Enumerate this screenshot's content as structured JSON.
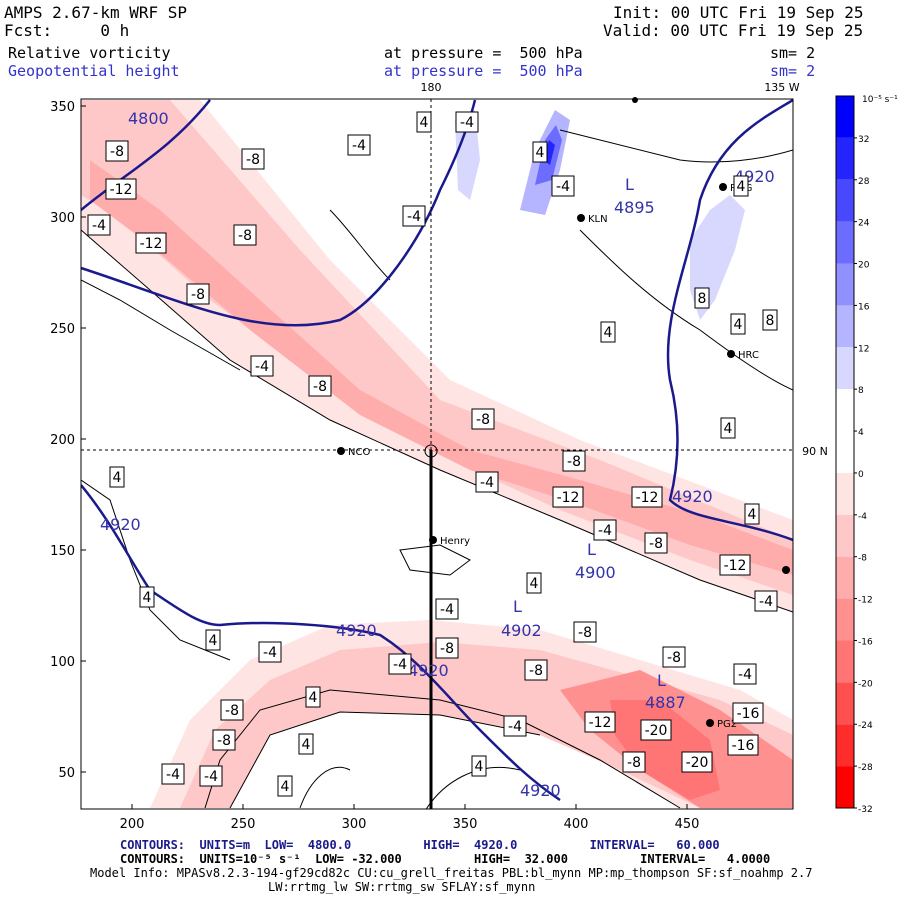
{
  "header": {
    "model": "AMPS 2.67-km WRF SP",
    "fcst": "Fcst:     0 h",
    "init": "Init: 00 UTC Fri 19 Sep 25",
    "valid": "Valid: 00 UTC Fri 19 Sep 25",
    "field1": "Relative vorticity",
    "field2": "Geopotential height",
    "level1": "at pressure =  500 hPa",
    "level2": "at pressure =  500 hPa",
    "sm1": "sm= 2",
    "sm2": "sm= 2"
  },
  "map": {
    "lon_top": "180",
    "lon_right": "135 W",
    "lat_right": "90 N",
    "x_ticks": [
      "200",
      "250",
      "300",
      "350",
      "400",
      "450"
    ],
    "y_ticks": [
      "350",
      "300",
      "250",
      "200",
      "150",
      "100",
      "50"
    ],
    "stations": [
      "NCO",
      "KLN",
      "RDG",
      "HRC",
      "Henry",
      "PG2"
    ],
    "height_labels": [
      "4800",
      "4895",
      "4920",
      "4920",
      "4920",
      "4920",
      "4920",
      "4920",
      "4900",
      "4902",
      "4887"
    ],
    "low_marker": "L"
  },
  "colorbar": {
    "unit": "10⁻⁵ s⁻¹",
    "labels": [
      "32",
      "28",
      "24",
      "20",
      "16",
      "12",
      "8",
      "4",
      "0",
      "-4",
      "-8",
      "-12",
      "-16",
      "-20",
      "-24",
      "-28",
      "-32"
    ],
    "colors": [
      "#0000ff",
      "#2424ff",
      "#4848ff",
      "#6c6cff",
      "#9090ff",
      "#b4b4ff",
      "#d8d8ff",
      "#ffffff",
      "#ffffff",
      "#ffe4e4",
      "#ffc8c8",
      "#ffacac",
      "#ff9090",
      "#ff7474",
      "#ff5050",
      "#ff2c2c",
      "#ff0000"
    ]
  },
  "footer": {
    "line1": "CONTOURS:  UNITS=m  LOW=  4800.0          HIGH=  4920.0          INTERVAL=   60.000",
    "line2": "CONTOURS:  UNITS=10⁻⁵ s⁻¹  LOW= -32.000          HIGH=  32.000          INTERVAL=   4.0000",
    "line3": "Model Info: MPASv8.2.3-194-gf29cd82c CU:cu_grell_freitas PBL:bl_mynn MP:mp_thompson SF:sf_noahmp 2.7",
    "line4": "LW:rrtmg_lw SW:rrtmg_sw SFLAY:sf_mynn"
  }
}
